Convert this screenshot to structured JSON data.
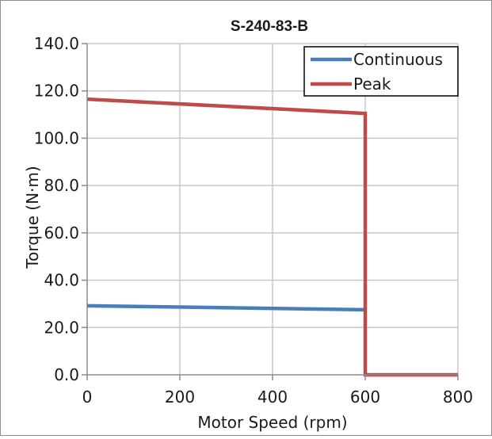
{
  "chart_data": {
    "type": "line",
    "title": "S-240-83-B",
    "xlabel": "Motor Speed (rpm)",
    "ylabel": "Torque (N·m)",
    "xlim": [
      0,
      800
    ],
    "ylim": [
      0,
      140
    ],
    "x_ticks": [
      0,
      200,
      400,
      600,
      800
    ],
    "y_ticks": [
      0,
      20,
      40,
      60,
      80,
      100,
      120,
      140
    ],
    "x_tick_labels": [
      "0",
      "200",
      "400",
      "600",
      "800"
    ],
    "y_tick_labels": [
      "0.0",
      "20.0",
      "40.0",
      "60.0",
      "80.0",
      "100.0",
      "120.0",
      "140.0"
    ],
    "grid": true,
    "legend_position": "top-right",
    "series": [
      {
        "name": "Continuous",
        "color": "#4a7ebb",
        "points": [
          [
            0,
            29.2
          ],
          [
            600,
            27.5
          ]
        ]
      },
      {
        "name": "Peak",
        "color": "#be4b48",
        "points": [
          [
            0,
            116.5
          ],
          [
            600,
            110.5
          ],
          [
            600,
            0
          ],
          [
            800,
            0
          ]
        ]
      }
    ]
  }
}
